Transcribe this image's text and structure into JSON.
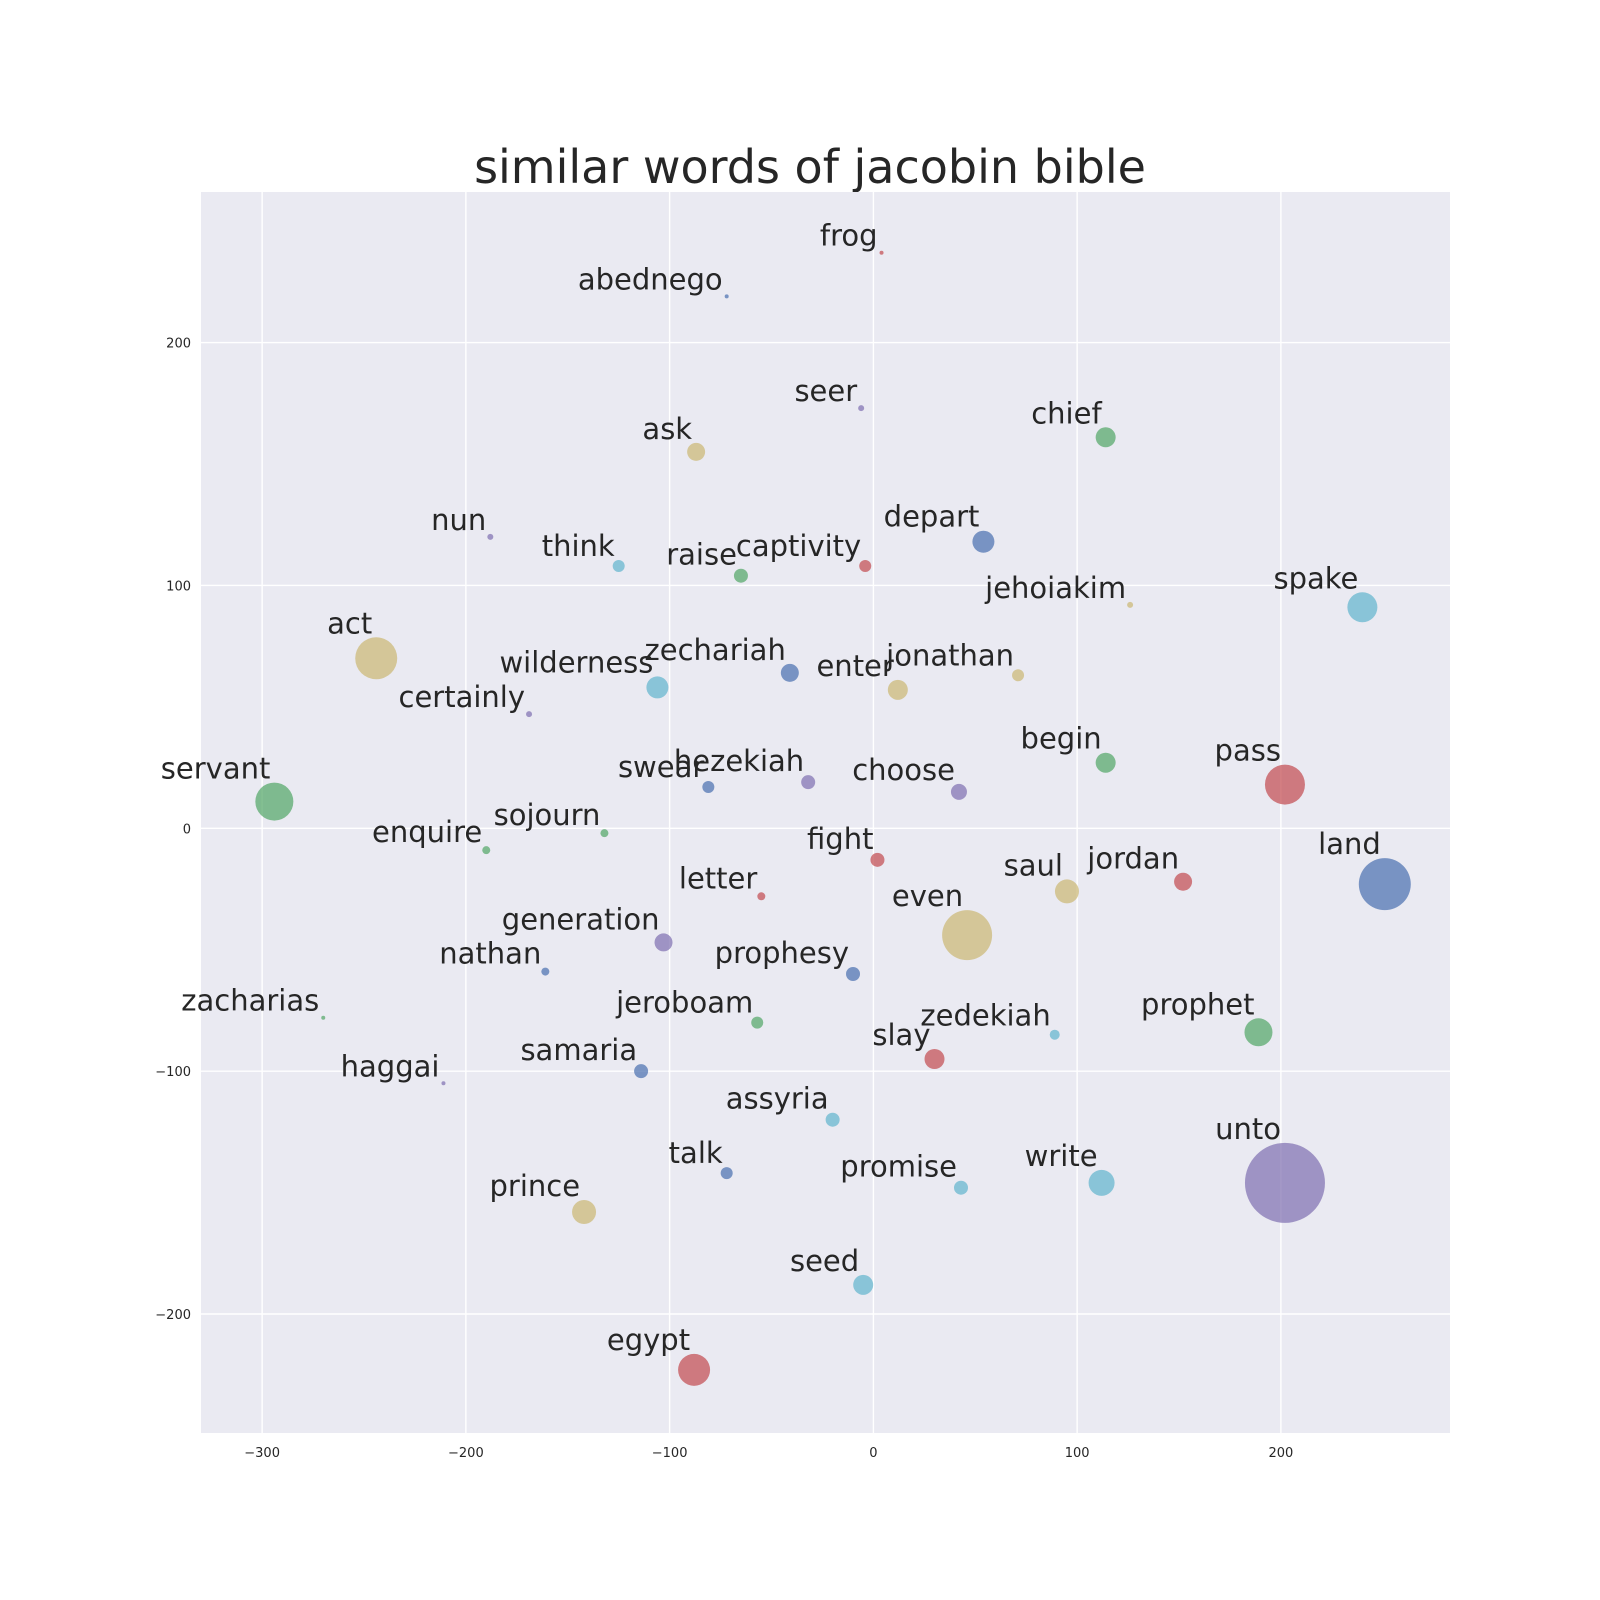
{
  "chart_data": {
    "type": "scatter",
    "title": "similar words of jacobin bible",
    "xlabel": "",
    "ylabel": "",
    "xlim": [
      -330,
      283
    ],
    "ylim": [
      -249,
      262
    ],
    "grid": true,
    "legend": "none",
    "xticks": [
      -300,
      -200,
      -100,
      0,
      100,
      200
    ],
    "yticks": [
      200,
      100,
      0,
      -100,
      -200
    ],
    "xtick_labels": [
      "−300",
      "−200",
      "−100",
      "0",
      "100",
      "200"
    ],
    "ytick_labels": [
      "200",
      "100",
      "0",
      "−100",
      "−200"
    ],
    "colors": {
      "background": "#eaeaf2",
      "blue": "#4c72b0",
      "green": "#55a868",
      "red": "#c44e52",
      "purple": "#8172b2",
      "yellow": "#ccb974",
      "cyan": "#64b5cd"
    },
    "points": [
      {
        "word": "frog",
        "x": 4,
        "y": 237,
        "size": 2,
        "color": "red"
      },
      {
        "word": "abednego",
        "x": -72,
        "y": 219,
        "size": 2,
        "color": "blue"
      },
      {
        "word": "seer",
        "x": -6,
        "y": 173,
        "size": 3,
        "color": "purple"
      },
      {
        "word": "chief",
        "x": 114,
        "y": 161,
        "size": 10,
        "color": "green"
      },
      {
        "word": "ask",
        "x": -87,
        "y": 155,
        "size": 9,
        "color": "yellow"
      },
      {
        "word": "nun",
        "x": -188,
        "y": 120,
        "size": 3,
        "color": "purple"
      },
      {
        "word": "depart",
        "x": 54,
        "y": 118,
        "size": 11,
        "color": "blue"
      },
      {
        "word": "think",
        "x": -125,
        "y": 108,
        "size": 6,
        "color": "cyan"
      },
      {
        "word": "captivity",
        "x": -4,
        "y": 108,
        "size": 6,
        "color": "red"
      },
      {
        "word": "raise",
        "x": -65,
        "y": 104,
        "size": 7,
        "color": "green"
      },
      {
        "word": "jehoiakim",
        "x": 126,
        "y": 92,
        "size": 3,
        "color": "yellow"
      },
      {
        "word": "spake",
        "x": 240,
        "y": 91,
        "size": 15,
        "color": "cyan"
      },
      {
        "word": "act",
        "x": -244,
        "y": 70,
        "size": 21,
        "color": "yellow"
      },
      {
        "word": "zechariah",
        "x": -41,
        "y": 64,
        "size": 9,
        "color": "blue"
      },
      {
        "word": "jonathan",
        "x": 71,
        "y": 63,
        "size": 6,
        "color": "yellow"
      },
      {
        "word": "wilderness",
        "x": -106,
        "y": 58,
        "size": 11,
        "color": "cyan"
      },
      {
        "word": "enter",
        "x": 12,
        "y": 57,
        "size": 10,
        "color": "yellow"
      },
      {
        "word": "certainly",
        "x": -169,
        "y": 47,
        "size": 3,
        "color": "purple"
      },
      {
        "word": "begin",
        "x": 114,
        "y": 27,
        "size": 10,
        "color": "green"
      },
      {
        "word": "pass",
        "x": 202,
        "y": 18,
        "size": 20,
        "color": "red"
      },
      {
        "word": "hezekiah",
        "x": -32,
        "y": 19,
        "size": 7,
        "color": "purple"
      },
      {
        "word": "swear",
        "x": -81,
        "y": 17,
        "size": 6,
        "color": "blue"
      },
      {
        "word": "choose",
        "x": 42,
        "y": 15,
        "size": 8,
        "color": "purple"
      },
      {
        "word": "servant",
        "x": -294,
        "y": 11,
        "size": 19,
        "color": "green"
      },
      {
        "word": "sojourn",
        "x": -132,
        "y": -2,
        "size": 4,
        "color": "green"
      },
      {
        "word": "enquire",
        "x": -190,
        "y": -9,
        "size": 4,
        "color": "green"
      },
      {
        "word": "fight",
        "x": 2,
        "y": -13,
        "size": 7,
        "color": "red"
      },
      {
        "word": "jordan",
        "x": 152,
        "y": -22,
        "size": 9,
        "color": "red"
      },
      {
        "word": "land",
        "x": 251,
        "y": -23,
        "size": 26,
        "color": "blue"
      },
      {
        "word": "saul",
        "x": 95,
        "y": -26,
        "size": 12,
        "color": "yellow"
      },
      {
        "word": "letter",
        "x": -55,
        "y": -28,
        "size": 4,
        "color": "red"
      },
      {
        "word": "even",
        "x": 46,
        "y": -44,
        "size": 25,
        "color": "yellow"
      },
      {
        "word": "generation",
        "x": -103,
        "y": -47,
        "size": 9,
        "color": "purple"
      },
      {
        "word": "nathan",
        "x": -161,
        "y": -59,
        "size": 4,
        "color": "blue"
      },
      {
        "word": "prophesy",
        "x": -10,
        "y": -60,
        "size": 7,
        "color": "blue"
      },
      {
        "word": "zacharias",
        "x": -270,
        "y": -78,
        "size": 2,
        "color": "green"
      },
      {
        "word": "jeroboam",
        "x": -57,
        "y": -80,
        "size": 6,
        "color": "green"
      },
      {
        "word": "prophet",
        "x": 189,
        "y": -84,
        "size": 14,
        "color": "green"
      },
      {
        "word": "zedekiah",
        "x": 89,
        "y": -85,
        "size": 5,
        "color": "cyan"
      },
      {
        "word": "slay",
        "x": 30,
        "y": -95,
        "size": 10,
        "color": "red"
      },
      {
        "word": "samaria",
        "x": -114,
        "y": -100,
        "size": 7,
        "color": "blue"
      },
      {
        "word": "haggai",
        "x": -211,
        "y": -105,
        "size": 2,
        "color": "purple"
      },
      {
        "word": "assyria",
        "x": -20,
        "y": -120,
        "size": 7,
        "color": "cyan"
      },
      {
        "word": "talk",
        "x": -72,
        "y": -142,
        "size": 6,
        "color": "blue"
      },
      {
        "word": "promise",
        "x": 43,
        "y": -148,
        "size": 7,
        "color": "cyan"
      },
      {
        "word": "write",
        "x": 112,
        "y": -146,
        "size": 13,
        "color": "cyan"
      },
      {
        "word": "unto",
        "x": 202,
        "y": -146,
        "size": 40,
        "color": "purple"
      },
      {
        "word": "prince",
        "x": -142,
        "y": -158,
        "size": 12,
        "color": "yellow"
      },
      {
        "word": "seed",
        "x": -5,
        "y": -188,
        "size": 10,
        "color": "cyan"
      },
      {
        "word": "egypt",
        "x": -88,
        "y": -223,
        "size": 16,
        "color": "red"
      }
    ]
  }
}
